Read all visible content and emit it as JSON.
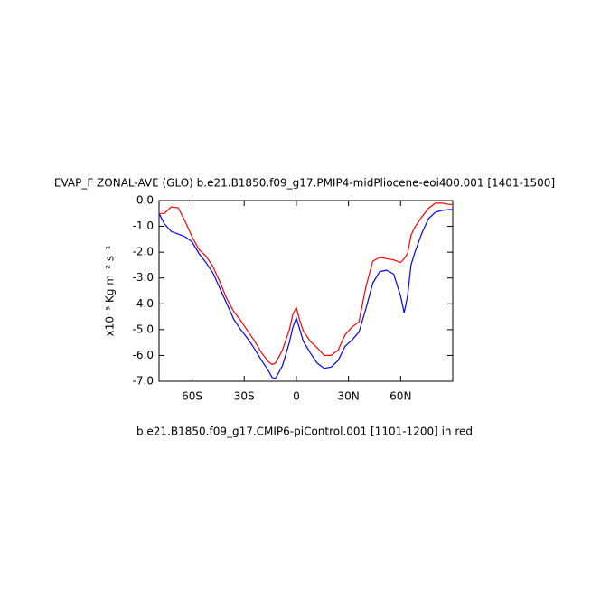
{
  "chart_data": {
    "type": "line",
    "title": "EVAP_F ZONAL-AVE (GLO) b.e21.B1850.f09_g17.PMIP4-midPliocene-eoi400.001 [1401-1500]",
    "subtitle": "b.e21.B1850.f09_g17.CMIP6-piControl.001 [1101-1200] in red",
    "ylabel": "x10⁻⁵ Kg m⁻² s⁻¹",
    "x": [
      -79,
      -76,
      -72,
      -68,
      -64,
      -60,
      -56,
      -52,
      -48,
      -44,
      -40,
      -36,
      -32,
      -28,
      -24,
      -20,
      -16,
      -14,
      -12,
      -8,
      -4,
      -2,
      0,
      2,
      4,
      8,
      12,
      16,
      20,
      24,
      28,
      32,
      36,
      40,
      44,
      48,
      52,
      56,
      60,
      62,
      64,
      66,
      68,
      72,
      76,
      80,
      84,
      88,
      90
    ],
    "series": [
      {
        "color": "#0000ff",
        "values": [
          -0.5,
          -0.9,
          -1.2,
          -1.3,
          -1.4,
          -1.6,
          -2.05,
          -2.4,
          -2.8,
          -3.4,
          -4.0,
          -4.6,
          -5.0,
          -5.35,
          -5.75,
          -6.2,
          -6.6,
          -6.85,
          -6.9,
          -6.4,
          -5.5,
          -4.9,
          -4.55,
          -5.0,
          -5.45,
          -5.9,
          -6.3,
          -6.5,
          -6.45,
          -6.2,
          -5.65,
          -5.4,
          -5.1,
          -4.2,
          -3.2,
          -2.75,
          -2.7,
          -2.85,
          -3.7,
          -4.35,
          -3.7,
          -2.5,
          -2.05,
          -1.3,
          -0.7,
          -0.45,
          -0.38,
          -0.35,
          -0.35
        ]
      },
      {
        "color": "#ff0000",
        "values": [
          -0.5,
          -0.5,
          -0.25,
          -0.28,
          -0.8,
          -1.4,
          -1.9,
          -2.15,
          -2.55,
          -3.15,
          -3.8,
          -4.3,
          -4.65,
          -5.05,
          -5.45,
          -5.9,
          -6.25,
          -6.35,
          -6.3,
          -5.8,
          -5.0,
          -4.4,
          -4.15,
          -4.65,
          -5.05,
          -5.45,
          -5.7,
          -6.0,
          -6.0,
          -5.8,
          -5.2,
          -4.9,
          -4.7,
          -3.35,
          -2.35,
          -2.2,
          -2.25,
          -2.3,
          -2.4,
          -2.25,
          -2.05,
          -1.35,
          -1.05,
          -0.65,
          -0.3,
          -0.1,
          -0.1,
          -0.15,
          -0.15
        ]
      }
    ],
    "xlim": [
      -79,
      90
    ],
    "ylim": [
      -7.0,
      0.0
    ],
    "xticks": [
      {
        "value": -60,
        "label": "60S"
      },
      {
        "value": -30,
        "label": "30S"
      },
      0,
      {
        "value": 30,
        "label": "30N"
      },
      {
        "value": 60,
        "label": "60N"
      }
    ],
    "yticks": [
      {
        "value": 0,
        "label": "0.0"
      },
      {
        "value": -1,
        "label": "-1.0"
      },
      {
        "value": -2,
        "label": "-2.0"
      },
      {
        "value": -3,
        "label": "-3.0"
      },
      {
        "value": -4,
        "label": "-4.0"
      },
      {
        "value": -5,
        "label": "-5.0"
      },
      {
        "value": -6,
        "label": "-6.0"
      },
      {
        "value": -7,
        "label": "-7.0"
      }
    ]
  }
}
